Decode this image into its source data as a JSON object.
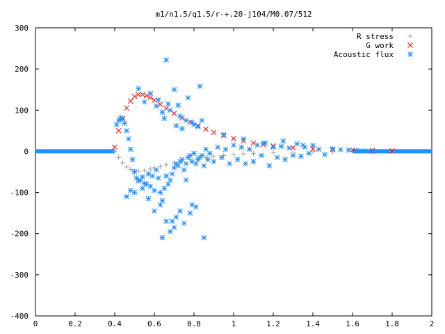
{
  "chart_data": {
    "type": "scatter",
    "title": "m1/n1.5/q1.5/r-+.20-j104/M0.07/512",
    "xlabel": "",
    "ylabel": "",
    "xlim": [
      0,
      2
    ],
    "ylim": [
      -400,
      300
    ],
    "xticks": [
      "0",
      "0.2",
      "0.4",
      "0.6",
      "0.8",
      "1",
      "1.2",
      "1.4",
      "1.6",
      "1.8",
      "2"
    ],
    "yticks": [
      "300",
      "200",
      "100",
      "0",
      "-100",
      "-200",
      "-300",
      "-400"
    ],
    "xtick_values": [
      0,
      0.2,
      0.4,
      0.6,
      0.8,
      1.0,
      1.2,
      1.4,
      1.6,
      1.8,
      2.0
    ],
    "ytick_values": [
      300,
      200,
      100,
      0,
      -100,
      -200,
      -300,
      -400
    ],
    "grid": false,
    "legend": "top-right",
    "series": [
      {
        "name": "R stress",
        "marker": "plus",
        "color": "#a0a0a0",
        "x": [
          0.4,
          0.42,
          0.44,
          0.46,
          0.48,
          0.5,
          0.52,
          0.55,
          0.58,
          0.6,
          0.63,
          0.66,
          0.7,
          0.74,
          0.78,
          0.82,
          0.86,
          0.9,
          0.95,
          1.0,
          1.05,
          1.1,
          1.2,
          1.3,
          1.4,
          1.5,
          1.6,
          1.7,
          1.8
        ],
        "y": [
          0,
          -15,
          -28,
          -38,
          -44,
          -48,
          -48,
          -46,
          -43,
          -40,
          -37,
          -33,
          -28,
          -24,
          -20,
          -17,
          -15,
          -12,
          -10,
          -8,
          -6,
          -5,
          -3,
          -2,
          -1,
          -1,
          0,
          0,
          0
        ]
      },
      {
        "name": "G work",
        "marker": "cross",
        "color": "#ff0000",
        "x": [
          0.4,
          0.42,
          0.44,
          0.46,
          0.48,
          0.5,
          0.52,
          0.54,
          0.56,
          0.58,
          0.6,
          0.63,
          0.66,
          0.7,
          0.74,
          0.78,
          0.82,
          0.86,
          0.9,
          0.95,
          1.0,
          1.05,
          1.1,
          1.15,
          1.2,
          1.3,
          1.4,
          1.5,
          1.6,
          1.7,
          1.8
        ],
        "y": [
          10,
          50,
          80,
          105,
          122,
          133,
          138,
          138,
          135,
          130,
          124,
          114,
          104,
          92,
          81,
          71,
          62,
          54,
          46,
          38,
          31,
          25,
          20,
          16,
          13,
          9,
          6,
          4,
          3,
          2,
          1
        ]
      },
      {
        "name": "Acoustic flux",
        "marker": "star",
        "color": "#1e90ff",
        "x": [
          0.41,
          0.42,
          0.43,
          0.44,
          0.45,
          0.46,
          0.47,
          0.48,
          0.49,
          0.5,
          0.51,
          0.52,
          0.53,
          0.54,
          0.55,
          0.56,
          0.57,
          0.58,
          0.59,
          0.6,
          0.61,
          0.62,
          0.63,
          0.64,
          0.65,
          0.66,
          0.67,
          0.68,
          0.69,
          0.7,
          0.71,
          0.72,
          0.73,
          0.74,
          0.75,
          0.76,
          0.77,
          0.78,
          0.79,
          0.8,
          0.81,
          0.82,
          0.83,
          0.84,
          0.85,
          0.86,
          0.87,
          0.88,
          0.9,
          0.92,
          0.94,
          0.96,
          0.98,
          1.0,
          1.02,
          1.04,
          1.06,
          1.08,
          1.1,
          1.12,
          1.14,
          1.16,
          1.18,
          1.2,
          1.22,
          1.24,
          1.26,
          1.28,
          1.3,
          1.32,
          1.34,
          1.36,
          1.38,
          1.4,
          1.43,
          1.46,
          1.5,
          1.54,
          1.58,
          1.62,
          1.66,
          1.7,
          0.52,
          0.55,
          0.58,
          0.61,
          0.64,
          0.67,
          0.7,
          0.73,
          0.76,
          0.79,
          0.82,
          0.62,
          0.65,
          0.68,
          0.71,
          0.74,
          0.77,
          0.8,
          0.83,
          0.66,
          0.72,
          0.84,
          0.6,
          0.63,
          0.69,
          0.75,
          0.78,
          0.81,
          0.48,
          0.46,
          0.5,
          0.54,
          0.57,
          0.95,
          1.05,
          1.15,
          1.25,
          1.35,
          0.66,
          0.7,
          0.73,
          0.64,
          0.68,
          0.71,
          0.79,
          0.85,
          0.76
        ],
        "y": [
          65,
          75,
          82,
          78,
          68,
          50,
          30,
          5,
          -20,
          -50,
          -65,
          -72,
          -70,
          -62,
          -78,
          -80,
          -55,
          -85,
          -60,
          -95,
          -45,
          -65,
          -100,
          -120,
          -90,
          -60,
          -80,
          -70,
          -55,
          -40,
          -30,
          -35,
          -25,
          -20,
          -45,
          -30,
          -15,
          -10,
          -25,
          -5,
          -30,
          -20,
          -15,
          -10,
          -35,
          5,
          -20,
          -5,
          -25,
          10,
          -15,
          5,
          -30,
          15,
          -20,
          10,
          -30,
          5,
          -25,
          15,
          -10,
          20,
          -35,
          10,
          -15,
          12,
          -20,
          8,
          -10,
          18,
          -12,
          10,
          -5,
          14,
          5,
          -8,
          6,
          4,
          3,
          2,
          1,
          0,
          152,
          120,
          140,
          110,
          95,
          115,
          150,
          85,
          75,
          70,
          60,
          125,
          80,
          100,
          62,
          55,
          130,
          65,
          158,
          222,
          112,
          75,
          -145,
          -130,
          -170,
          -175,
          -150,
          -135,
          -95,
          -110,
          -100,
          -90,
          -115,
          40,
          30,
          20,
          25,
          15,
          -170,
          -185,
          -145,
          -210,
          -195,
          -160,
          -130,
          -210,
          -70
        ]
      }
    ]
  }
}
